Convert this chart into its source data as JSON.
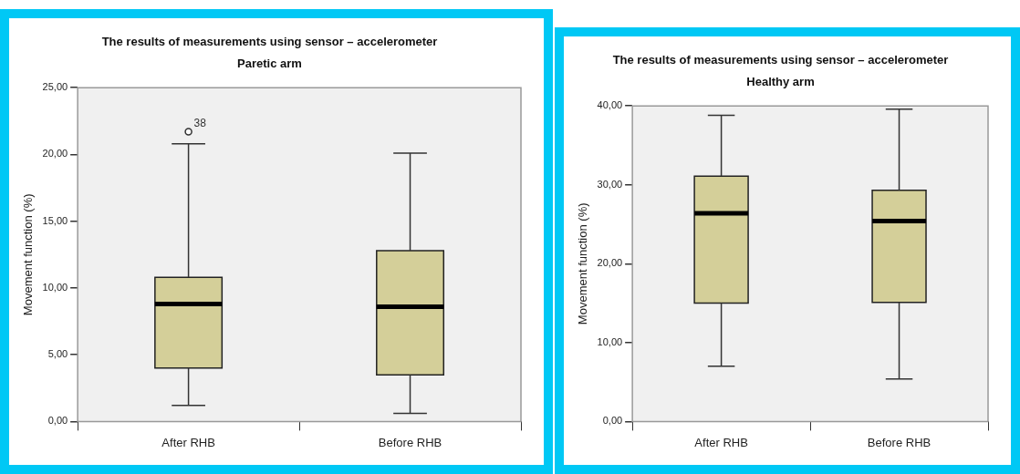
{
  "chart_data": [
    {
      "type": "box",
      "title": "The results of measurements using sensor – accelerometer",
      "subtitle": "Paretic arm",
      "ylabel": "Movement function (%)",
      "categories": [
        "After RHB",
        "Before RHB"
      ],
      "series": [
        {
          "color": "#d4cf99",
          "boxes": [
            {
              "low": 1.2,
              "q1": 4.0,
              "median": 8.8,
              "q3": 10.8,
              "high": 20.8,
              "outliers": [
                21.7
              ]
            },
            {
              "low": 0.6,
              "q1": 3.5,
              "median": 8.6,
              "q3": 12.8,
              "high": 20.1
            }
          ]
        }
      ],
      "ylim": [
        0,
        25
      ],
      "yticks": [
        {
          "value": 0,
          "label": "0,00"
        },
        {
          "value": 5,
          "label": "5,00"
        },
        {
          "value": 10,
          "label": "10,00"
        },
        {
          "value": 15,
          "label": "15,00"
        },
        {
          "value": 20,
          "label": "20,00"
        },
        {
          "value": 25,
          "label": "25,00"
        }
      ],
      "annotations": [
        "38"
      ],
      "grid": false,
      "legend": false
    },
    {
      "type": "box",
      "title": "The results of measurements using sensor – accelerometer",
      "subtitle": "Healthy arm",
      "ylabel": "Movement function (%)",
      "categories": [
        "After RHB",
        "Before RHB"
      ],
      "series": [
        {
          "color": "#d4cf99",
          "boxes": [
            {
              "low": 7.0,
              "q1": 15.0,
              "median": 26.4,
              "q3": 31.1,
              "high": 38.8
            },
            {
              "low": 5.4,
              "q1": 15.1,
              "median": 25.4,
              "q3": 29.3,
              "high": 39.6
            }
          ]
        }
      ],
      "ylim": [
        0,
        40
      ],
      "yticks": [
        {
          "value": 0,
          "label": "0,00"
        },
        {
          "value": 10,
          "label": "10,00"
        },
        {
          "value": 20,
          "label": "20,00"
        },
        {
          "value": 30,
          "label": "30,00"
        },
        {
          "value": 40,
          "label": "40,00"
        }
      ],
      "grid": false,
      "legend": false
    }
  ]
}
